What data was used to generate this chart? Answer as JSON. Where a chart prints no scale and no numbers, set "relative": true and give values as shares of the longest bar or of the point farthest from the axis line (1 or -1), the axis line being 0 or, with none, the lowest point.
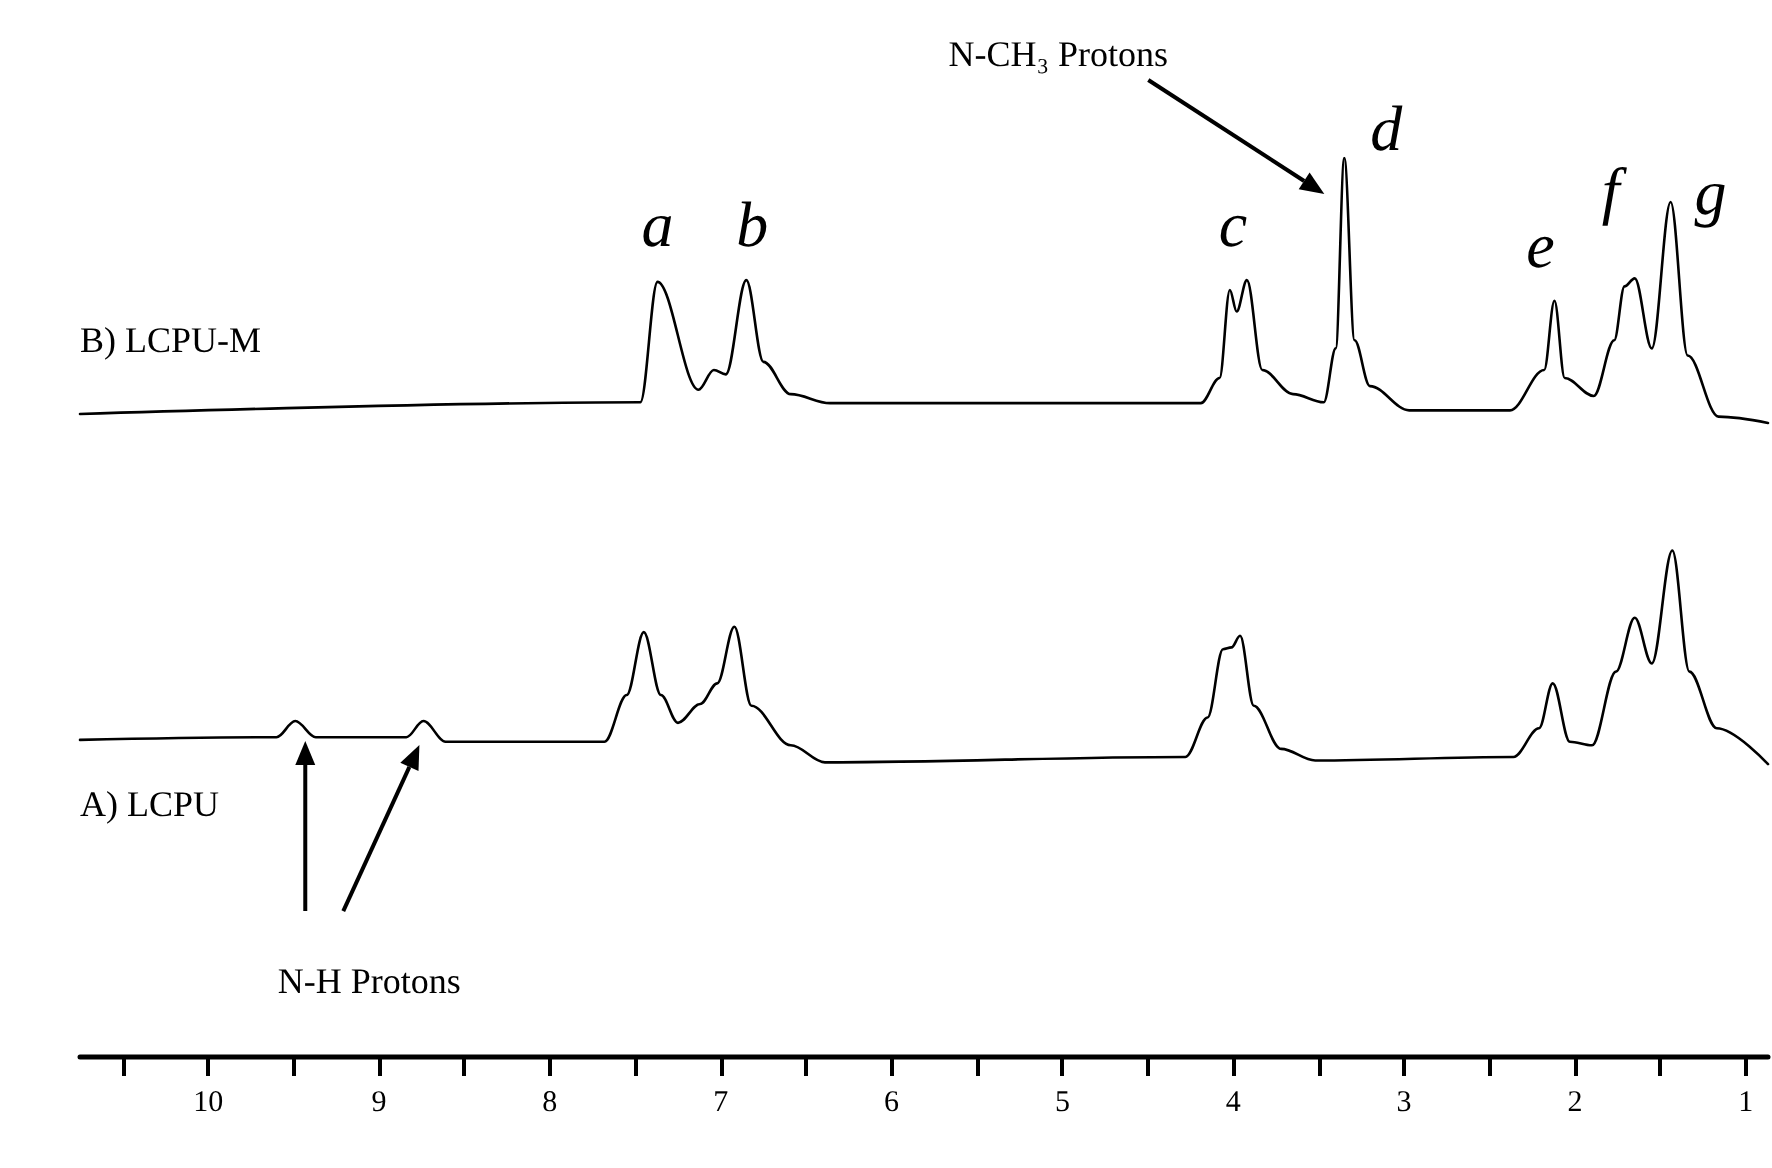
{
  "chart_data": {
    "type": "line",
    "relative": true,
    "xlim": [
      10.75,
      0.87
    ],
    "xticks": [
      {
        "value": 10.5,
        "label": null
      },
      10,
      {
        "value": 9.5,
        "label": null
      },
      9,
      {
        "value": 8.5,
        "label": null
      },
      8,
      {
        "value": 7.5,
        "label": null
      },
      7,
      {
        "value": 6.5,
        "label": null
      },
      6,
      {
        "value": 5.5,
        "label": null
      },
      5,
      {
        "value": 4.5,
        "label": null
      },
      4,
      {
        "value": 3.5,
        "label": null
      },
      3,
      {
        "value": 2.5,
        "label": null
      },
      2,
      {
        "value": 1.5,
        "label": null
      },
      1
    ],
    "legend": false,
    "grid": false,
    "marker": "none",
    "line_style": "solid",
    "series": [
      {
        "name": "B) LCPU-M",
        "color": "#000000",
        "x": [
          10.75,
          7.47,
          7.37,
          7.13,
          7.04,
          6.97,
          6.85,
          6.75,
          6.59,
          6.36,
          4.19,
          4.08,
          4.02,
          3.98,
          3.92,
          3.83,
          3.65,
          3.47,
          3.4,
          3.35,
          3.29,
          3.2,
          2.97,
          2.38,
          2.18,
          2.12,
          2.06,
          1.89,
          1.77,
          1.71,
          1.65,
          1.55,
          1.44,
          1.34,
          1.16,
          0.87
        ],
        "values": [
          0.715,
          0.728,
          0.862,
          0.742,
          0.764,
          0.759,
          0.864,
          0.773,
          0.737,
          0.727,
          0.727,
          0.755,
          0.853,
          0.829,
          0.864,
          0.764,
          0.737,
          0.728,
          0.788,
          1,
          0.797,
          0.746,
          0.719,
          0.719,
          0.764,
          0.841,
          0.755,
          0.735,
          0.797,
          0.857,
          0.866,
          0.788,
          0.951,
          0.78,
          0.712,
          0.705
        ]
      },
      {
        "name": "A) LCPU",
        "color": "#000000",
        "x": [
          10.75,
          9.6,
          9.49,
          9.37,
          8.84,
          8.74,
          8.61,
          7.68,
          7.55,
          7.45,
          7.35,
          7.25,
          7.12,
          7.02,
          6.92,
          6.82,
          6.59,
          6.39,
          4.28,
          4.15,
          4.06,
          4.01,
          3.96,
          3.88,
          3.72,
          3.52,
          2.36,
          2.21,
          2.13,
          2.03,
          1.9,
          1.76,
          1.65,
          1.55,
          1.43,
          1.33,
          1.17,
          0.87
        ],
        "values": [
          0.352,
          0.355,
          0.373,
          0.355,
          0.355,
          0.373,
          0.35,
          0.35,
          0.402,
          0.472,
          0.402,
          0.371,
          0.392,
          0.415,
          0.478,
          0.39,
          0.346,
          0.327,
          0.333,
          0.377,
          0.453,
          0.455,
          0.468,
          0.39,
          0.342,
          0.329,
          0.333,
          0.365,
          0.415,
          0.35,
          0.346,
          0.428,
          0.488,
          0.437,
          0.563,
          0.428,
          0.365,
          0.325
        ]
      }
    ],
    "annotations": [
      {
        "text": "a",
        "x": 7.37,
        "y": 0.862
      },
      {
        "text": "b",
        "x": 6.85,
        "y": 0.864
      },
      {
        "text": "c",
        "x": 3.92,
        "y": 0.864
      },
      {
        "text": "d",
        "x": 3.35,
        "y": 1
      },
      {
        "text": "e",
        "x": 2.12,
        "y": 0.841
      },
      {
        "text": "f",
        "x": 1.65,
        "y": 0.866
      },
      {
        "text": "g",
        "x": 1.44,
        "y": 0.951
      },
      "N-CH₃ Protons",
      "N-H Protons"
    ]
  }
}
